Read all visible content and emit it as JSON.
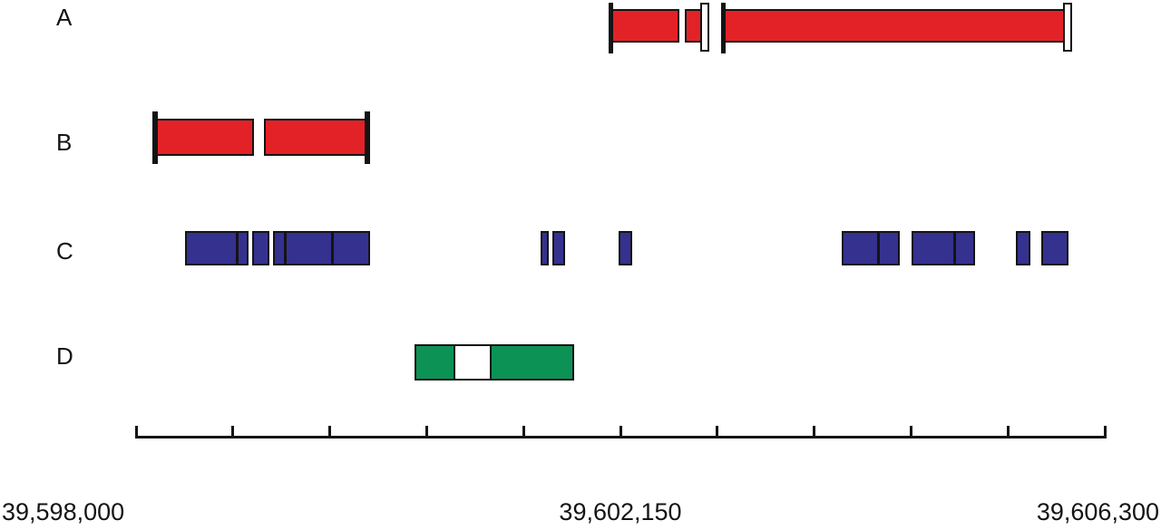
{
  "chart_data": {
    "type": "genomic-interval-map",
    "description": "Four horizontal tracks of genomic intervals plotted over a base-pair coordinate axis",
    "axis": {
      "min": 39598000,
      "max": 39606300,
      "tick_interval": 830,
      "tick_count": 11,
      "labels": [
        {
          "text": "39,598,000",
          "bp": 39598000,
          "align": "left"
        },
        {
          "text": "39,602,150",
          "bp": 39602150,
          "align": "center"
        },
        {
          "text": "39,606,300",
          "bp": 39606300,
          "align": "right"
        }
      ]
    },
    "colors": {
      "red": "#e32227",
      "blue": "#35318f",
      "green": "#0d9255",
      "outline": "#141414",
      "white": "#ffffff"
    },
    "tracks": [
      {
        "label": "A",
        "style": "clone-bar",
        "color_key": "red",
        "segments": [
          {
            "start": 39602090,
            "end": 39602835,
            "left_end": "bracket",
            "right_end": "open-box",
            "white_gaps": [
              {
                "start": 39602640,
                "end": 39602718
              }
            ]
          },
          {
            "start": 39603052,
            "end": 39605943,
            "left_end": "bracket",
            "right_end": "open-box",
            "white_gaps": []
          }
        ]
      },
      {
        "label": "B",
        "style": "clone-bar",
        "color_key": "red",
        "segments": [
          {
            "start": 39598187,
            "end": 39599959,
            "left_end": "bracket",
            "right_end": "bracket",
            "white_gaps": [
              {
                "start": 39598995,
                "end": 39599111
              }
            ]
          }
        ]
      },
      {
        "label": "C",
        "style": "exon-blocks",
        "color_key": "blue",
        "blocks": [
          {
            "start": 39598420,
            "end": 39598964,
            "separators": [
              39598870
            ]
          },
          {
            "start": 39598995,
            "end": 39599143,
            "separators": []
          },
          {
            "start": 39599174,
            "end": 39600005,
            "separators": [
              39599275,
              39599679
            ]
          },
          {
            "start": 39601466,
            "end": 39601536,
            "separators": []
          },
          {
            "start": 39601567,
            "end": 39601676,
            "separators": []
          },
          {
            "start": 39602135,
            "end": 39602251,
            "separators": []
          },
          {
            "start": 39604047,
            "end": 39604544,
            "separators": [
              39604358
            ]
          },
          {
            "start": 39604645,
            "end": 39605189,
            "separators": [
              39605010
            ]
          },
          {
            "start": 39605539,
            "end": 39605663,
            "separators": []
          },
          {
            "start": 39605756,
            "end": 39605990,
            "separators": []
          }
        ]
      },
      {
        "label": "D",
        "style": "segmented-box",
        "color_key": "green",
        "box": {
          "start": 39600386,
          "end": 39601754
        },
        "white_section": {
          "start": 39600720,
          "end": 39601047
        }
      }
    ]
  }
}
